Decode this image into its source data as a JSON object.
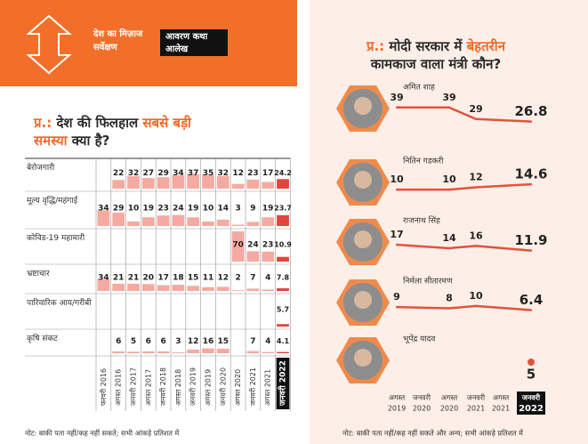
{
  "header": {
    "section_line1": "देश का मिज़ाज",
    "section_line2": "सर्वेक्षण",
    "tag_line1": "आवरण कथा",
    "tag_line2": "आलेख"
  },
  "chart_data": [
    {
      "type": "table-bars",
      "title": {
        "prefix": "प्र.:",
        "text": "देश की फिलहाल",
        "highlight": "सबसे बड़ी समस्या",
        "end": "क्या है?"
      },
      "columns": [
        "फरवरी 2016",
        "अगस्त 2016",
        "जनवरी 2017",
        "अगस्त 2017",
        "जनवरी 2018",
        "अगस्त 2018",
        "जनवरी 2019",
        "अगस्त 2019",
        "जनवरी 2020",
        "अगस्त 2020",
        "जनवरी 2021",
        "अगस्त 2021",
        "जनवरी 2022"
      ],
      "series": [
        {
          "name": "बेरोजगारी",
          "values": [
            null,
            22,
            32,
            27,
            29,
            34,
            37,
            35,
            32,
            12,
            23,
            17,
            24.2
          ]
        },
        {
          "name": "मूल्य वृद्धि/महंगाई",
          "values": [
            34,
            29,
            10,
            19,
            23,
            24,
            19,
            10,
            14,
            3,
            9,
            19,
            23.7
          ]
        },
        {
          "name": "कोविड-19 महामारी",
          "values": [
            null,
            null,
            null,
            null,
            null,
            null,
            null,
            null,
            null,
            70,
            24,
            23,
            10.9
          ]
        },
        {
          "name": "भ्रष्टाचार",
          "values": [
            34,
            21,
            21,
            20,
            17,
            18,
            15,
            11,
            12,
            2,
            7,
            4,
            7.8
          ]
        },
        {
          "name": "पारिवारिक आय/गरीबी",
          "values": [
            null,
            null,
            null,
            null,
            null,
            null,
            null,
            null,
            null,
            null,
            null,
            null,
            5.7
          ]
        },
        {
          "name": "कृषि संकट",
          "values": [
            null,
            6,
            5,
            6,
            6,
            3,
            12,
            16,
            15,
            null,
            7,
            4,
            4.1
          ]
        }
      ],
      "color": "#f5aaa1",
      "last_color": "#e0463c",
      "note": "नोट: बाकी पता नहीं/कह नहीं सकते; सभी आंकड़े प्रतिशत में"
    },
    {
      "type": "line",
      "title": {
        "prefix": "प्र.:",
        "text": "मोदी सरकार में",
        "highlight": "बेहतरीन",
        "end": "कामकाज वाला मंत्री कौन?"
      },
      "x": [
        {
          "month": "अगस्त",
          "year": "2019"
        },
        {
          "month": "जनवरी",
          "year": "2020"
        },
        {
          "month": "अगस्त",
          "year": "2020"
        },
        {
          "month": "जनवरी",
          "year": "2021"
        },
        {
          "month": "अगस्त",
          "year": "2021"
        },
        {
          "month": "जनवरी",
          "year": "2022"
        }
      ],
      "series": [
        {
          "name": "अमित शाह",
          "values": [
            39,
            null,
            39,
            29,
            null,
            26.8
          ]
        },
        {
          "name": "नितिन गडकरी",
          "values": [
            10,
            null,
            10,
            12,
            null,
            14.6
          ]
        },
        {
          "name": "राजनाथ सिंह",
          "values": [
            17,
            null,
            14,
            16,
            null,
            11.9
          ]
        },
        {
          "name": "निर्मला सीतारमण",
          "values": [
            9,
            null,
            8,
            10,
            null,
            6.4
          ]
        },
        {
          "name": "भूपेंद्र यादव",
          "values": [
            null,
            null,
            null,
            null,
            null,
            5
          ]
        }
      ],
      "color": "#e0533f",
      "note": "नोट: बाकी पता नहीं/कह नहीं सकते और अन्य; सभी आंकड़े प्रतिशत में"
    }
  ]
}
